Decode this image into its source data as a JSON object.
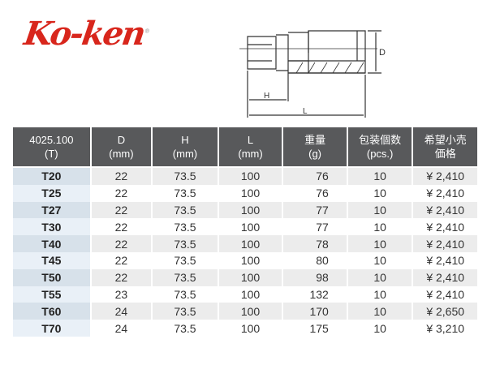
{
  "brand": {
    "logo_text": "Ko-ken",
    "color": "#d8261c"
  },
  "diagram": {
    "label_d": "D",
    "label_h": "H",
    "label_l": "L"
  },
  "table": {
    "headers": [
      [
        "4025.100",
        "(T)"
      ],
      [
        "D",
        "(mm)"
      ],
      [
        "H",
        "(mm)"
      ],
      [
        "L",
        "(mm)"
      ],
      [
        "重量",
        "(g)"
      ],
      [
        "包装個数",
        "(pcs.)"
      ],
      [
        "希望小売",
        "価格"
      ]
    ],
    "rows": [
      [
        "T20",
        "22",
        "73.5",
        "100",
        "76",
        "10",
        "¥ 2,410"
      ],
      [
        "T25",
        "22",
        "73.5",
        "100",
        "76",
        "10",
        "¥ 2,410"
      ],
      [
        "T27",
        "22",
        "73.5",
        "100",
        "77",
        "10",
        "¥ 2,410"
      ],
      [
        "T30",
        "22",
        "73.5",
        "100",
        "77",
        "10",
        "¥ 2,410"
      ],
      [
        "T40",
        "22",
        "73.5",
        "100",
        "78",
        "10",
        "¥ 2,410"
      ],
      [
        "T45",
        "22",
        "73.5",
        "100",
        "80",
        "10",
        "¥ 2,410"
      ],
      [
        "T50",
        "22",
        "73.5",
        "100",
        "98",
        "10",
        "¥ 2,410"
      ],
      [
        "T55",
        "23",
        "73.5",
        "100",
        "132",
        "10",
        "¥ 2,410"
      ],
      [
        "T60",
        "24",
        "73.5",
        "100",
        "170",
        "10",
        "¥ 2,650"
      ],
      [
        "T70",
        "24",
        "73.5",
        "100",
        "175",
        "10",
        "¥ 3,210"
      ]
    ]
  }
}
